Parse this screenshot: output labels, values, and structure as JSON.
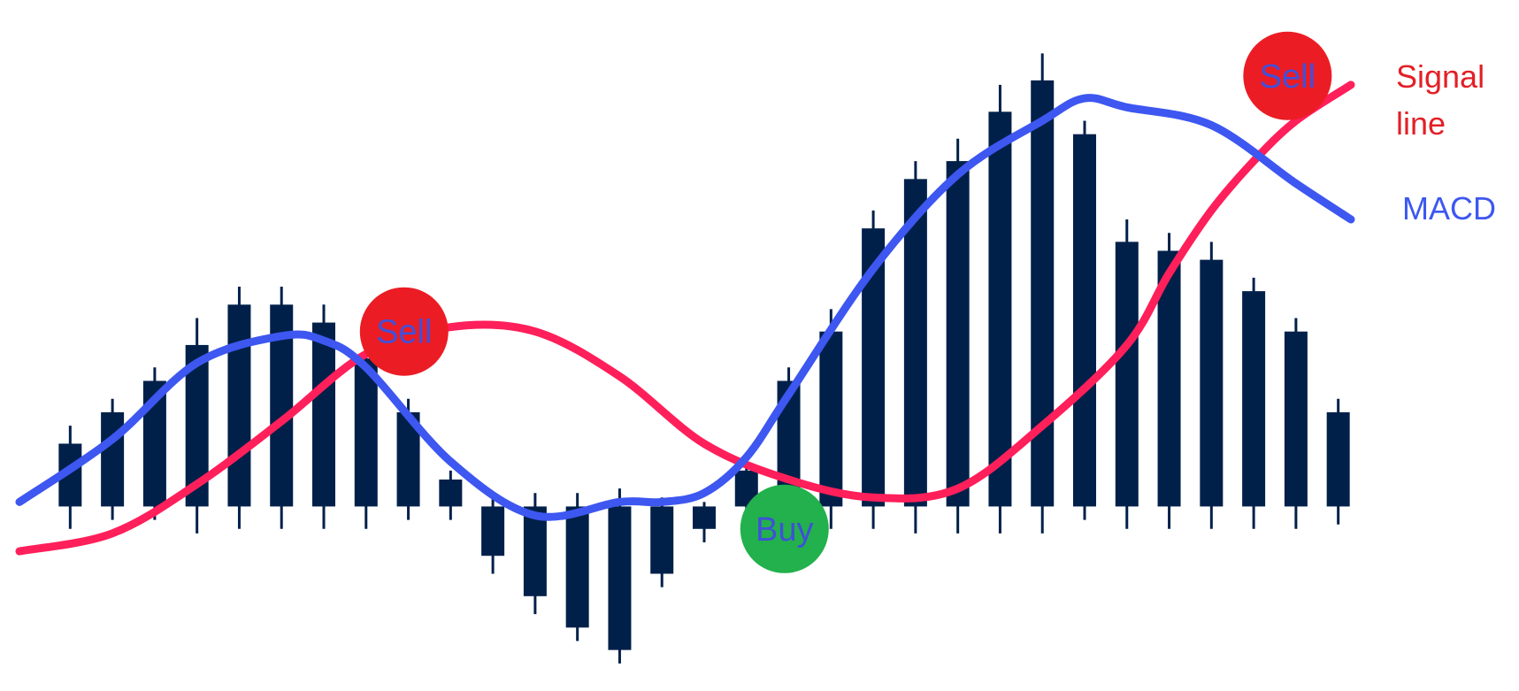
{
  "chart_data": {
    "type": "bar",
    "xlim": [
      0,
      32.4
    ],
    "ylim": [
      -0.37,
      1.07
    ],
    "zero_line": 0,
    "bars": [
      {
        "x": 1.2,
        "top": 0.14,
        "bottom": 0.0,
        "whisker_high": 0.18,
        "whisker_low": -0.05
      },
      {
        "x": 2.2,
        "top": 0.21,
        "bottom": 0.0,
        "whisker_high": 0.24,
        "whisker_low": -0.03
      },
      {
        "x": 3.2,
        "top": 0.28,
        "bottom": 0.0,
        "whisker_high": 0.31,
        "whisker_low": -0.03
      },
      {
        "x": 4.2,
        "top": 0.36,
        "bottom": 0.0,
        "whisker_high": 0.42,
        "whisker_low": -0.06
      },
      {
        "x": 5.2,
        "top": 0.45,
        "bottom": 0.0,
        "whisker_high": 0.49,
        "whisker_low": -0.05
      },
      {
        "x": 6.2,
        "top": 0.45,
        "bottom": 0.0,
        "whisker_high": 0.49,
        "whisker_low": -0.05
      },
      {
        "x": 7.2,
        "top": 0.41,
        "bottom": 0.0,
        "whisker_high": 0.45,
        "whisker_low": -0.05
      },
      {
        "x": 8.2,
        "top": 0.33,
        "bottom": 0.0,
        "whisker_high": 0.37,
        "whisker_low": -0.05
      },
      {
        "x": 9.2,
        "top": 0.21,
        "bottom": 0.0,
        "whisker_high": 0.24,
        "whisker_low": -0.03
      },
      {
        "x": 10.2,
        "top": 0.06,
        "bottom": 0.0,
        "whisker_high": 0.08,
        "whisker_low": -0.03
      },
      {
        "x": 11.2,
        "top": 0.0,
        "bottom": -0.11,
        "whisker_high": 0.03,
        "whisker_low": -0.15
      },
      {
        "x": 12.2,
        "top": 0.0,
        "bottom": -0.2,
        "whisker_high": 0.03,
        "whisker_low": -0.24
      },
      {
        "x": 13.2,
        "top": 0.0,
        "bottom": -0.27,
        "whisker_high": 0.03,
        "whisker_low": -0.3
      },
      {
        "x": 14.2,
        "top": 0.0,
        "bottom": -0.32,
        "whisker_high": 0.04,
        "whisker_low": -0.35
      },
      {
        "x": 15.2,
        "top": 0.0,
        "bottom": -0.15,
        "whisker_high": 0.02,
        "whisker_low": -0.18
      },
      {
        "x": 16.2,
        "top": 0.0,
        "bottom": -0.05,
        "whisker_high": 0.01,
        "whisker_low": -0.08
      },
      {
        "x": 17.2,
        "top": 0.08,
        "bottom": 0.0,
        "whisker_high": 0.11,
        "whisker_low": -0.02
      },
      {
        "x": 18.2,
        "top": 0.28,
        "bottom": 0.0,
        "whisker_high": 0.31,
        "whisker_low": -0.02
      },
      {
        "x": 19.2,
        "top": 0.39,
        "bottom": 0.0,
        "whisker_high": 0.44,
        "whisker_low": -0.05
      },
      {
        "x": 20.2,
        "top": 0.62,
        "bottom": 0.0,
        "whisker_high": 0.66,
        "whisker_low": -0.05
      },
      {
        "x": 21.2,
        "top": 0.73,
        "bottom": 0.0,
        "whisker_high": 0.77,
        "whisker_low": -0.06
      },
      {
        "x": 22.2,
        "top": 0.77,
        "bottom": 0.0,
        "whisker_high": 0.82,
        "whisker_low": -0.06
      },
      {
        "x": 23.2,
        "top": 0.88,
        "bottom": 0.0,
        "whisker_high": 0.94,
        "whisker_low": -0.06
      },
      {
        "x": 24.2,
        "top": 0.95,
        "bottom": 0.0,
        "whisker_high": 1.01,
        "whisker_low": -0.06
      },
      {
        "x": 25.2,
        "top": 0.83,
        "bottom": 0.0,
        "whisker_high": 0.86,
        "whisker_low": -0.03
      },
      {
        "x": 26.2,
        "top": 0.59,
        "bottom": 0.0,
        "whisker_high": 0.64,
        "whisker_low": -0.05
      },
      {
        "x": 27.2,
        "top": 0.57,
        "bottom": 0.0,
        "whisker_high": 0.61,
        "whisker_low": -0.05
      },
      {
        "x": 28.2,
        "top": 0.55,
        "bottom": 0.0,
        "whisker_high": 0.59,
        "whisker_low": -0.05
      },
      {
        "x": 29.2,
        "top": 0.48,
        "bottom": 0.0,
        "whisker_high": 0.51,
        "whisker_low": -0.05
      },
      {
        "x": 30.2,
        "top": 0.39,
        "bottom": 0.0,
        "whisker_high": 0.42,
        "whisker_low": -0.05
      },
      {
        "x": 31.2,
        "top": 0.21,
        "bottom": 0.0,
        "whisker_high": 0.24,
        "whisker_low": -0.04
      }
    ],
    "series": [
      {
        "name": "MACD",
        "color": "#3d57f0",
        "x": [
          0,
          2.2,
          4.2,
          6.2,
          7.2,
          8.2,
          10.2,
          12.2,
          14.2,
          15.2,
          16.2,
          17.2,
          18.2,
          20.2,
          22.2,
          24.2,
          25.2,
          26.2,
          28.2,
          30.2,
          31.5
        ],
        "y": [
          0.01,
          0.15,
          0.32,
          0.38,
          0.37,
          0.31,
          0.1,
          -0.02,
          0.01,
          0.01,
          0.03,
          0.11,
          0.25,
          0.53,
          0.74,
          0.86,
          0.91,
          0.89,
          0.85,
          0.72,
          0.64
        ]
      },
      {
        "name": "Signal line",
        "color": "#ff1f5a",
        "x": [
          0,
          2.2,
          4.2,
          6.2,
          8.2,
          10.2,
          12.2,
          14.2,
          16.2,
          18.2,
          20.2,
          22.2,
          24.2,
          26.2,
          27.2,
          28.2,
          29.2,
          30.2,
          31.5
        ],
        "y": [
          -0.1,
          -0.06,
          0.05,
          0.19,
          0.34,
          0.4,
          0.39,
          0.29,
          0.14,
          0.06,
          0.02,
          0.04,
          0.18,
          0.36,
          0.52,
          0.66,
          0.77,
          0.86,
          0.94
        ]
      }
    ],
    "labels": [
      {
        "id": "macd",
        "text": "MACD",
        "color": "#3d57f0"
      },
      {
        "id": "signal",
        "lines": [
          "Signal",
          "line"
        ],
        "color": "#e31f26"
      }
    ],
    "annotations": [
      {
        "text": "Sell",
        "x": 9.1,
        "y": 0.39,
        "fill": "#ec1c24",
        "text_color": "#4050d8"
      },
      {
        "text": "Buy",
        "x": 18.1,
        "y": -0.05,
        "fill": "#22b14c",
        "text_color": "#4050d8"
      },
      {
        "text": "Sell",
        "x": 30.0,
        "y": 0.96,
        "fill": "#ec1c24",
        "text_color": "#4050d8"
      }
    ],
    "colors": {
      "bars": "#00204a",
      "macd": "#3d57f0",
      "signal": "#ff1f5a",
      "sell_marker": "#ec1c24",
      "buy_marker": "#22b14c",
      "marker_text": "#4050d8"
    },
    "grid": false,
    "axes_visible": false
  }
}
